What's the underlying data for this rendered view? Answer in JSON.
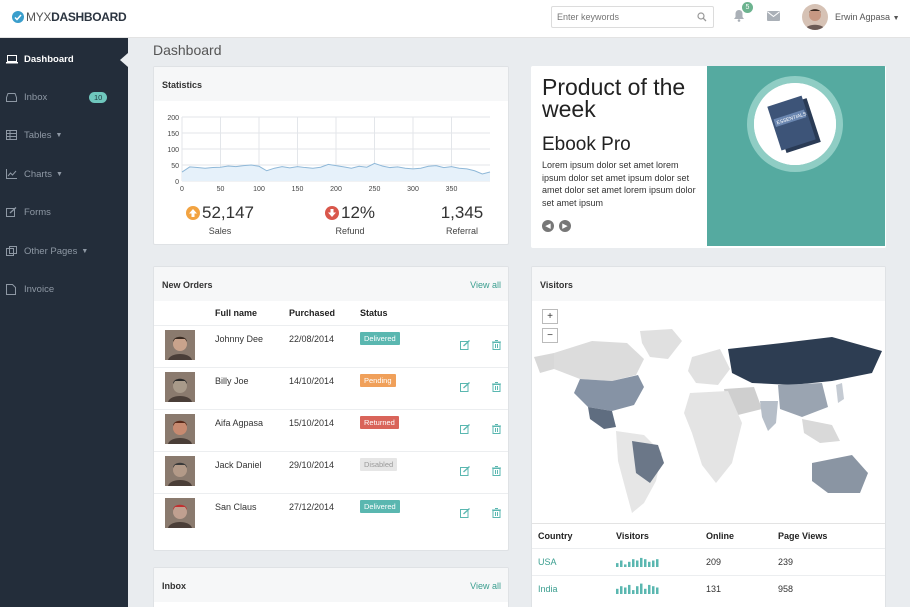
{
  "brand": {
    "light": "MYX",
    "bold": "DASHBOARD"
  },
  "header": {
    "search_placeholder": "Enter keywords",
    "notification_count": "5",
    "user_name": "Erwin Agpasa"
  },
  "sidebar": {
    "items": [
      {
        "label": "Dashboard",
        "icon": "laptop-icon",
        "active": true
      },
      {
        "label": "Inbox",
        "icon": "inbox-icon",
        "badge": "10"
      },
      {
        "label": "Tables",
        "icon": "table-icon",
        "dropdown": true
      },
      {
        "label": "Charts",
        "icon": "chart-icon",
        "dropdown": true
      },
      {
        "label": "Forms",
        "icon": "edit-icon"
      },
      {
        "label": "Other Pages",
        "icon": "pages-icon",
        "dropdown": true
      },
      {
        "label": "Invoice",
        "icon": "document-icon"
      }
    ]
  },
  "page_title": "Dashboard",
  "statistics": {
    "title": "Statistics",
    "chart_data": {
      "type": "area",
      "ylim": [
        0,
        200
      ],
      "yticks": [
        "200",
        "150",
        "100",
        "50",
        "0"
      ],
      "xticks": [
        "0",
        "50",
        "100",
        "150",
        "200",
        "250",
        "300",
        "350"
      ],
      "x": [
        0,
        10,
        20,
        30,
        40,
        50,
        60,
        70,
        80,
        90,
        100,
        110,
        120,
        130,
        140,
        150,
        160,
        170,
        180,
        190,
        200,
        210,
        220,
        230,
        240,
        250,
        260,
        270,
        280,
        290,
        300,
        310,
        320,
        330,
        340,
        350,
        360,
        370,
        380,
        390,
        400
      ],
      "values": [
        28,
        44,
        42,
        40,
        42,
        43,
        47,
        45,
        48,
        50,
        46,
        32,
        40,
        45,
        41,
        45,
        42,
        40,
        43,
        52,
        48,
        44,
        40,
        46,
        43,
        55,
        47,
        42,
        44,
        40,
        38,
        40,
        46,
        48,
        42,
        45,
        40,
        38,
        32,
        22,
        28
      ]
    },
    "stats": [
      {
        "value": "52,147",
        "label": "Sales",
        "trend": "up"
      },
      {
        "value": "12%",
        "label": "Refund",
        "trend": "down"
      },
      {
        "value": "1,345",
        "label": "Referral"
      }
    ]
  },
  "product": {
    "title": "Product of the week",
    "name": "Ebook Pro",
    "description": "Lorem ipsum dolor set amet lorem ipsum dolor set amet ipsum dolor set amet dolor set amet lorem ipsum dolor set amet ipsum",
    "book_label": "ESSENTIALS",
    "colors": {
      "panel": "#55aaa0"
    }
  },
  "orders": {
    "title": "New Orders",
    "view_all": "View all",
    "columns": [
      "Full name",
      "Purchased",
      "Status"
    ],
    "rows": [
      {
        "name": "Johnny Dee",
        "date": "22/08/2014",
        "status": "Delivered",
        "color": "#5ab7b0"
      },
      {
        "name": "Billy Joe",
        "date": "14/10/2014",
        "status": "Pending",
        "color": "#f0a05a"
      },
      {
        "name": "Aifa Agpasa",
        "date": "15/10/2014",
        "status": "Returned",
        "color": "#d9645a"
      },
      {
        "name": "Jack Daniel",
        "date": "29/10/2014",
        "status": "Disabled",
        "color": "#e6e6e6"
      },
      {
        "name": "San Claus",
        "date": "27/12/2014",
        "status": "Delivered",
        "color": "#5ab7b0"
      }
    ]
  },
  "inbox_panel": {
    "title": "Inbox",
    "view_all": "View all"
  },
  "visitors": {
    "title": "Visitors",
    "zoom_in": "+",
    "zoom_out": "−",
    "columns": [
      "Country",
      "Visitors",
      "Online",
      "Page Views"
    ],
    "rows": [
      {
        "country": "USA",
        "online": "209",
        "views": "239",
        "spark": [
          3,
          5,
          2,
          4,
          6,
          5,
          7,
          6,
          4,
          5,
          6
        ]
      },
      {
        "country": "India",
        "online": "131",
        "views": "958",
        "spark": [
          4,
          6,
          5,
          7,
          3,
          6,
          8,
          4,
          7,
          6,
          5
        ]
      }
    ]
  }
}
